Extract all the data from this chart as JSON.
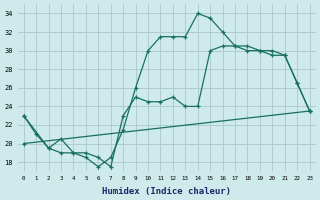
{
  "background_color": "#ceeaea",
  "grid_color": "#b0cccc",
  "line_color": "#1a7060",
  "xlabel": "Humidex (Indice chaleur)",
  "xlim": [
    -0.5,
    23.5
  ],
  "ylim": [
    17,
    35
  ],
  "yticks": [
    18,
    20,
    22,
    24,
    26,
    28,
    30,
    32,
    34
  ],
  "xticks": [
    0,
    1,
    2,
    3,
    4,
    5,
    6,
    7,
    8,
    9,
    10,
    11,
    12,
    13,
    14,
    15,
    16,
    17,
    18,
    19,
    20,
    21,
    22,
    23
  ],
  "line1_x": [
    0,
    1,
    2,
    3,
    4,
    5,
    6,
    7,
    8,
    9,
    10,
    11,
    12,
    13,
    14,
    15,
    16,
    17,
    18,
    19,
    20,
    21,
    22,
    23
  ],
  "line1_y": [
    23,
    21,
    19.5,
    19,
    19,
    18.5,
    17.5,
    18.5,
    21.5,
    26,
    30,
    31.5,
    31.5,
    31.5,
    34,
    33.5,
    32,
    30.5,
    30.5,
    30,
    30,
    29.5,
    26.5,
    23.5
  ],
  "line2_x": [
    0,
    2,
    3,
    4,
    5,
    6,
    7,
    8,
    9,
    10,
    11,
    12,
    13,
    14,
    15,
    16,
    17,
    18,
    19,
    20,
    21,
    22,
    23
  ],
  "line2_y": [
    23,
    19.5,
    20.5,
    19,
    19,
    18.5,
    17.5,
    23,
    25,
    24.5,
    24.5,
    25,
    24,
    24,
    30,
    30.5,
    30.5,
    30,
    30,
    29.5,
    29.5,
    26.5,
    23.5
  ],
  "line3_x": [
    0,
    23
  ],
  "line3_y": [
    20,
    23.5
  ]
}
